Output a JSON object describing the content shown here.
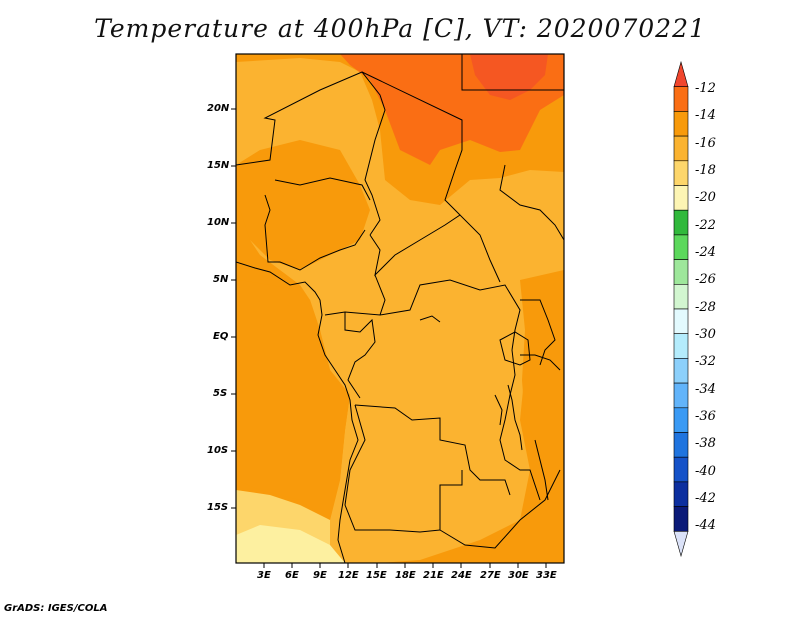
{
  "title": "Temperature at 400hPa [C], VT: 2020070221",
  "footer": "GrADS: IGES/COLA",
  "lat_labels": [
    "20N",
    "15N",
    "10N",
    "5N",
    "EQ",
    "5S",
    "10S",
    "15S"
  ],
  "lon_labels": [
    "3E",
    "6E",
    "9E",
    "12E",
    "15E",
    "18E",
    "21E",
    "24E",
    "27E",
    "30E",
    "33E"
  ],
  "colorbar": {
    "labels": [
      "-12",
      "-14",
      "-16",
      "-18",
      "-20",
      "-22",
      "-24",
      "-26",
      "-28",
      "-30",
      "-32",
      "-34",
      "-36",
      "-38",
      "-40",
      "-42",
      "-44"
    ],
    "colors": [
      "#f0462d",
      "#fa6e14",
      "#f89a0b",
      "#fbb330",
      "#fdd66b",
      "#fdf5b4",
      "#31b93c",
      "#5cd85c",
      "#9ee79b",
      "#d2f6d0",
      "#e3fafe",
      "#b4ecfc",
      "#8cd0fb",
      "#62b4fa",
      "#3a9af4",
      "#1f74df",
      "#1552c8",
      "#0c2f9f",
      "#0b1a78",
      "#dbe2f8"
    ]
  },
  "map": {
    "lon_range": [
      "0E",
      "35E"
    ],
    "lat_range": [
      "20S",
      "24N"
    ]
  }
}
